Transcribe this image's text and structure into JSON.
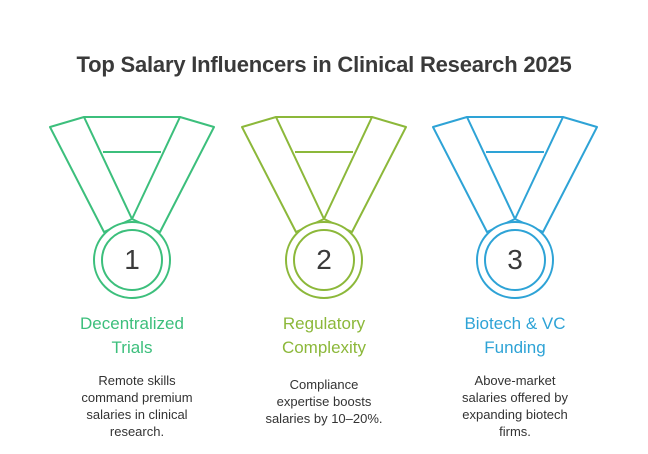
{
  "title": "Top Salary Influencers in Clinical Research 2025",
  "medals": [
    {
      "number": "1",
      "label_line1": "Decentralized",
      "label_line2": "Trials",
      "desc_line1": "Remote skills",
      "desc_line2": "command premium",
      "desc_line3": "salaries in clinical",
      "desc_line4": "research.",
      "color": "#3cbf7c"
    },
    {
      "number": "2",
      "label_line1": "Regulatory",
      "label_line2": "Complexity",
      "desc_line1": "Compliance",
      "desc_line2": "expertise boosts",
      "desc_line3": "salaries by 10–20%.",
      "color": "#8cb83a"
    },
    {
      "number": "3",
      "label_line1": "Biotech & VC",
      "label_line2": "Funding",
      "desc_line1": "Above-market",
      "desc_line2": "salaries offered by",
      "desc_line3": "expanding biotech",
      "desc_line4": "firms.",
      "color": "#2ea3d6"
    }
  ]
}
